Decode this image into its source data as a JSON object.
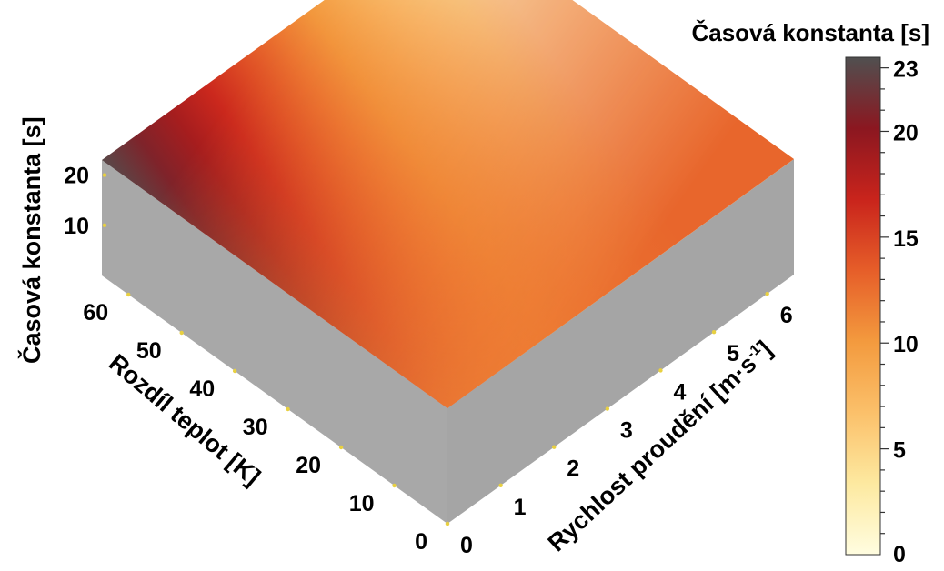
{
  "chart_data": {
    "type": "surface3d",
    "x_axis": {
      "label": "Rychlost proudění [m·s-1]",
      "label_main": "Rychlost proudění [m·s",
      "label_sup": "-1",
      "label_end": "]",
      "range": [
        0,
        6.5
      ],
      "ticks": [
        0,
        1,
        2,
        3,
        4,
        5,
        6
      ]
    },
    "y_axis": {
      "label": "Rozdíl teplot [K]",
      "range": [
        0,
        65
      ],
      "ticks": [
        0,
        10,
        20,
        30,
        40,
        50,
        60
      ]
    },
    "z_axis": {
      "label": "Časová konstanta [s]",
      "range": [
        0,
        23
      ],
      "ticks": [
        10,
        20
      ]
    },
    "corner_values": [
      {
        "x": 0,
        "y": 0,
        "z": 10.5
      },
      {
        "x": 6.5,
        "y": 0,
        "z": 13
      },
      {
        "x": 0,
        "y": 65,
        "z": 23
      },
      {
        "x": 6.5,
        "y": 65,
        "z": 1.5
      }
    ],
    "colorbar": {
      "title": "Časová konstanta [s]",
      "range": [
        0,
        23.5
      ],
      "ticks": [
        0,
        5,
        10,
        15,
        20,
        23
      ],
      "colors": [
        "#fffde0",
        "#fde9a0",
        "#fbc06a",
        "#f39a3e",
        "#e65e29",
        "#c9241c",
        "#8b1720",
        "#505050"
      ]
    }
  }
}
